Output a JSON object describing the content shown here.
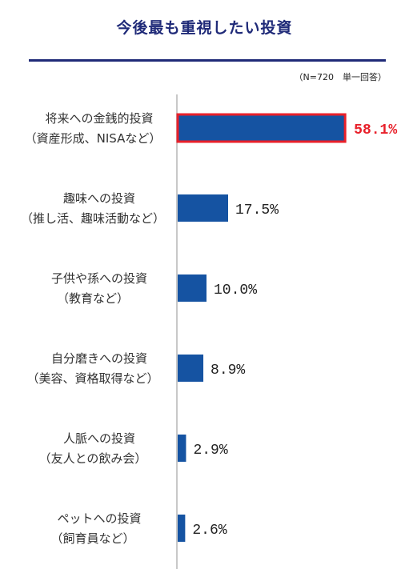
{
  "chart_data": {
    "type": "bar",
    "orientation": "horizontal",
    "title": "今後最も重視したい投資",
    "note": "（N=720　単一回答）",
    "unit": "%",
    "xlim": [
      0,
      100
    ],
    "grid": false,
    "categories": [
      {
        "line1": "将来への金銭的投資",
        "line2": "（資産形成、NISAなど）"
      },
      {
        "line1": "趣味への投資",
        "line2": "（推し活、趣味活動など）"
      },
      {
        "line1": "子供や孫への投資",
        "line2": "（教育など）"
      },
      {
        "line1": "自分磨きへの投資",
        "line2": "（美容、資格取得など）"
      },
      {
        "line1": "人脈への投資",
        "line2": "（友人との飲み会）"
      },
      {
        "line1": "ペットへの投資",
        "line2": "（飼育員など）"
      }
    ],
    "values": [
      58.1,
      17.5,
      10.0,
      8.9,
      2.9,
      2.6
    ],
    "value_labels": [
      "58.1%",
      "17.5%",
      "10.0%",
      "8.9%",
      "2.9%",
      "2.6%"
    ],
    "highlight_index": 0,
    "colors": {
      "bar": "#1553a2",
      "highlight_border": "#e8202a",
      "highlight_text": "#e8202a",
      "axis": "#c8c8c8",
      "title": "#1f2a78"
    }
  }
}
